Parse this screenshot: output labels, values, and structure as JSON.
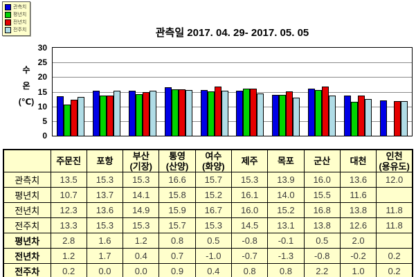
{
  "colors": {
    "series_blue": "#0000E6",
    "series_green": "#00D400",
    "series_red": "#E60000",
    "series_lightblue": "#B0DCE6",
    "table_bg": "#FFFFCC",
    "grid": "#8A8A8A",
    "axis": "#000000"
  },
  "chart": {
    "title": "관측일 2017. 04. 29- 2017. 05. 05",
    "y_axis_label_lines": [
      "수",
      "온",
      "(℃)"
    ],
    "y_ticks": [
      "30",
      "25",
      "20",
      "15",
      "10",
      "5",
      "0"
    ]
  },
  "chart_data": {
    "type": "bar",
    "title": "관측일 2017. 04. 29- 2017. 05. 05",
    "xlabel": "",
    "ylabel": "수온(℃)",
    "ylim": [
      0,
      30
    ],
    "y_tick_step": 5,
    "grid": true,
    "legend_position": "top-left",
    "categories": [
      "주문진",
      "포항",
      "부산(기장)",
      "통영(산양)",
      "여수(화양)",
      "제주",
      "목포",
      "군산",
      "대천",
      "인천(용유도)"
    ],
    "series": [
      {
        "name": "관측치",
        "color": "#0000E6",
        "values": [
          13.5,
          15.3,
          15.3,
          16.6,
          15.7,
          15.3,
          13.9,
          16.0,
          13.6,
          12.0
        ]
      },
      {
        "name": "평년치",
        "color": "#00D400",
        "values": [
          10.7,
          13.7,
          14.1,
          15.8,
          15.2,
          16.1,
          14.0,
          15.5,
          11.6,
          null
        ]
      },
      {
        "name": "전년치",
        "color": "#E60000",
        "values": [
          12.3,
          13.6,
          14.9,
          15.9,
          16.7,
          16.0,
          15.2,
          16.8,
          13.8,
          11.8
        ]
      },
      {
        "name": "전주치",
        "color": "#B0DCE6",
        "values": [
          13.3,
          15.3,
          15.3,
          15.7,
          15.3,
          14.5,
          13.1,
          13.8,
          12.6,
          11.8
        ]
      }
    ]
  },
  "table": {
    "corner_label": "",
    "columns": [
      "주문진",
      "포항",
      "부산\n(기장)",
      "통영\n(산양)",
      "여수\n(화양)",
      "제주",
      "목포",
      "군산",
      "대천",
      "인천\n(용유도)"
    ],
    "rows": [
      {
        "label": "관측치",
        "bold": false,
        "values": [
          "13.5",
          "15.3",
          "15.3",
          "16.6",
          "15.7",
          "15.3",
          "13.9",
          "16.0",
          "13.6",
          "12.0"
        ]
      },
      {
        "label": "평년치",
        "bold": false,
        "values": [
          "10.7",
          "13.7",
          "14.1",
          "15.8",
          "15.2",
          "16.1",
          "14.0",
          "15.5",
          "11.6",
          ""
        ]
      },
      {
        "label": "전년치",
        "bold": false,
        "values": [
          "12.3",
          "13.6",
          "14.9",
          "15.9",
          "16.7",
          "16.0",
          "15.2",
          "16.8",
          "13.8",
          "11.8"
        ]
      },
      {
        "label": "전주치",
        "bold": false,
        "values": [
          "13.3",
          "15.3",
          "15.3",
          "15.7",
          "15.3",
          "14.5",
          "13.1",
          "13.8",
          "12.6",
          "11.8"
        ]
      },
      {
        "label": "평년차",
        "bold": true,
        "values": [
          "2.8",
          "1.6",
          "1.2",
          "0.8",
          "0.5",
          "-0.8",
          "-0.1",
          "0.5",
          "2.0",
          ""
        ]
      },
      {
        "label": "전년차",
        "bold": true,
        "values": [
          "1.2",
          "1.7",
          "0.4",
          "0.7",
          "-1.0",
          "-0.7",
          "-1.3",
          "-0.8",
          "-0.2",
          "0.2"
        ]
      },
      {
        "label": "전주차",
        "bold": true,
        "values": [
          "0.2",
          "0.0",
          "0.0",
          "0.9",
          "0.4",
          "0.8",
          "0.8",
          "2.2",
          "1.0",
          "0.2"
        ]
      }
    ]
  }
}
